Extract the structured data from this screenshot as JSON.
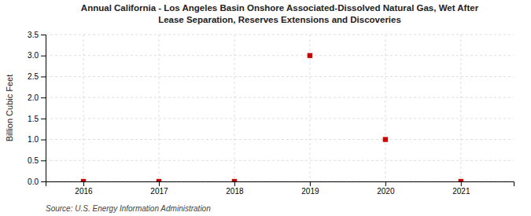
{
  "chart_data": {
    "type": "scatter",
    "title": "Annual California - Los Angeles Basin Onshore Associated-Dissolved Natural Gas, Wet After\nLease Separation, Reserves Extensions and Discoveries",
    "ylabel": "Billion Cubic Feet",
    "source": "Source: U.S. Energy Information Administration",
    "x": [
      2016,
      2017,
      2018,
      2019,
      2020,
      2021
    ],
    "values": [
      0,
      0,
      0,
      3.0,
      1.0,
      0
    ],
    "color": "#cc0000",
    "marker": "square",
    "xlim": [
      2015.5,
      2021.7
    ],
    "xticks": [
      2016,
      2017,
      2018,
      2019,
      2020,
      2021
    ],
    "ylim": [
      0,
      3.5
    ],
    "yticks": [
      {
        "value": 0.0,
        "label": "0.0"
      },
      0.5,
      {
        "value": 1.0,
        "label": "1.0"
      },
      1.5,
      {
        "value": 2.0,
        "label": "2.0"
      },
      2.5,
      {
        "value": 3.0,
        "label": "3.0"
      },
      3.5
    ],
    "grid": true
  }
}
